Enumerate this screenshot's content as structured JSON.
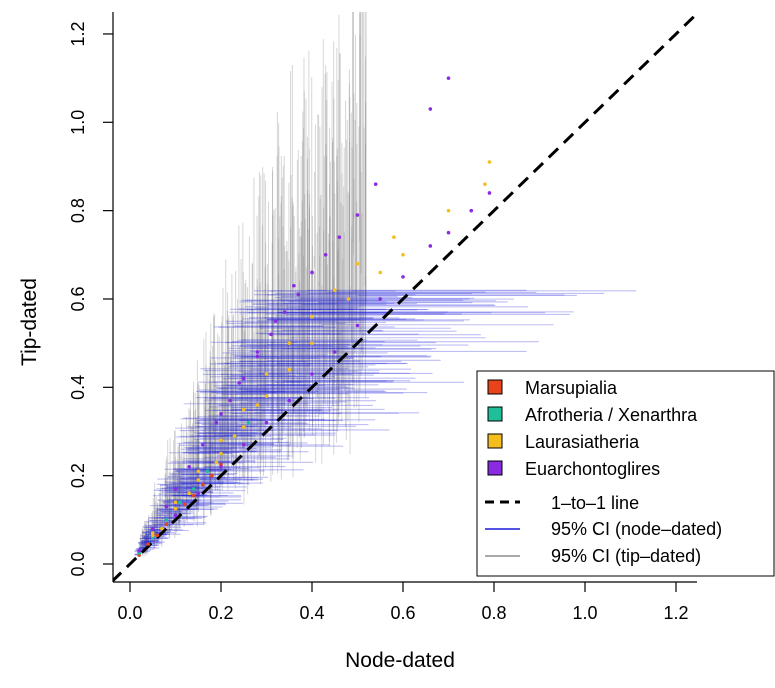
{
  "chart_data": {
    "type": "scatter",
    "title": "",
    "xlabel": "Node-dated",
    "ylabel": "Tip-dated",
    "xlim": [
      -0.04,
      1.25
    ],
    "ylim": [
      -0.04,
      1.25
    ],
    "xticks": [
      0.0,
      0.2,
      0.4,
      0.6,
      0.8,
      1.0,
      1.2
    ],
    "yticks": [
      0.0,
      0.2,
      0.4,
      0.6,
      0.8,
      1.0,
      1.2
    ],
    "xtick_labels": [
      "0.0",
      "0.2",
      "0.4",
      "0.6",
      "0.8",
      "1.0",
      "1.2"
    ],
    "ytick_labels": [
      "0.0",
      "0.2",
      "0.4",
      "0.6",
      "0.8",
      "1.0",
      "1.2"
    ],
    "grid": false,
    "legend_position": "bottom-right",
    "series": [
      {
        "name": "Marsupialia",
        "color": "#e8431a",
        "points": [
          [
            0.02,
            0.02
          ],
          [
            0.04,
            0.045
          ],
          [
            0.06,
            0.065
          ],
          [
            0.08,
            0.09
          ],
          [
            0.1,
            0.11
          ],
          [
            0.12,
            0.135
          ],
          [
            0.14,
            0.155
          ],
          [
            0.16,
            0.18
          ],
          [
            0.18,
            0.2
          ],
          [
            0.2,
            0.225
          ]
        ]
      },
      {
        "name": "Afrotheria / Xenarthra",
        "color": "#1fbf9a",
        "points": [
          [
            0.02,
            0.025
          ],
          [
            0.05,
            0.06
          ],
          [
            0.08,
            0.1
          ],
          [
            0.11,
            0.14
          ],
          [
            0.14,
            0.17
          ],
          [
            0.17,
            0.21
          ],
          [
            0.2,
            0.25
          ],
          [
            0.23,
            0.29
          ],
          [
            0.26,
            0.32
          ]
        ]
      },
      {
        "name": "Laurasiatheria",
        "color": "#f5be1e",
        "points": [
          [
            0.05,
            0.07
          ],
          [
            0.1,
            0.14
          ],
          [
            0.15,
            0.21
          ],
          [
            0.2,
            0.28
          ],
          [
            0.25,
            0.35
          ],
          [
            0.3,
            0.43
          ],
          [
            0.35,
            0.5
          ],
          [
            0.4,
            0.56
          ],
          [
            0.45,
            0.62
          ],
          [
            0.5,
            0.68
          ],
          [
            0.05,
            0.065
          ],
          [
            0.1,
            0.125
          ],
          [
            0.15,
            0.19
          ],
          [
            0.2,
            0.25
          ],
          [
            0.25,
            0.31
          ],
          [
            0.3,
            0.38
          ],
          [
            0.35,
            0.44
          ],
          [
            0.4,
            0.5
          ],
          [
            0.48,
            0.6
          ],
          [
            0.55,
            0.66
          ],
          [
            0.6,
            0.7
          ],
          [
            0.58,
            0.74
          ],
          [
            0.79,
            0.91
          ],
          [
            0.78,
            0.86
          ],
          [
            0.7,
            0.8
          ],
          [
            0.07,
            0.08
          ],
          [
            0.13,
            0.16
          ],
          [
            0.19,
            0.23
          ],
          [
            0.23,
            0.29
          ],
          [
            0.28,
            0.36
          ]
        ]
      },
      {
        "name": "Euarchontoglires",
        "color": "#8a2be2",
        "points": [
          [
            0.02,
            0.03
          ],
          [
            0.05,
            0.08
          ],
          [
            0.08,
            0.13
          ],
          [
            0.1,
            0.17
          ],
          [
            0.13,
            0.22
          ],
          [
            0.16,
            0.27
          ],
          [
            0.19,
            0.32
          ],
          [
            0.22,
            0.37
          ],
          [
            0.25,
            0.42
          ],
          [
            0.28,
            0.47
          ],
          [
            0.31,
            0.52
          ],
          [
            0.34,
            0.57
          ],
          [
            0.37,
            0.61
          ],
          [
            0.4,
            0.66
          ],
          [
            0.43,
            0.7
          ],
          [
            0.46,
            0.74
          ],
          [
            0.5,
            0.79
          ],
          [
            0.36,
            0.63
          ],
          [
            0.32,
            0.55
          ],
          [
            0.28,
            0.48
          ],
          [
            0.24,
            0.41
          ],
          [
            0.2,
            0.34
          ],
          [
            0.1,
            0.11
          ],
          [
            0.2,
            0.22
          ],
          [
            0.3,
            0.32
          ],
          [
            0.4,
            0.43
          ],
          [
            0.5,
            0.54
          ],
          [
            0.6,
            0.65
          ],
          [
            0.66,
            0.72
          ],
          [
            0.7,
            0.75
          ],
          [
            0.75,
            0.8
          ],
          [
            0.79,
            0.84
          ],
          [
            0.7,
            1.1
          ],
          [
            0.66,
            1.03
          ],
          [
            0.54,
            0.86
          ],
          [
            0.15,
            0.16
          ],
          [
            0.25,
            0.27
          ],
          [
            0.35,
            0.37
          ],
          [
            0.45,
            0.48
          ],
          [
            0.55,
            0.6
          ]
        ]
      }
    ],
    "reference_line": {
      "name": "1–to–1 line",
      "from": [
        -0.04,
        -0.04
      ],
      "to": [
        1.25,
        1.25
      ],
      "color": "#000000",
      "style": "dashed"
    },
    "ci_node_dated": {
      "name": "95% CI (node–dated)",
      "color": "#1a1adc"
    },
    "ci_tip_dated": {
      "name": "95% CI (tip–dated)",
      "color": "#8c8c8c"
    }
  }
}
